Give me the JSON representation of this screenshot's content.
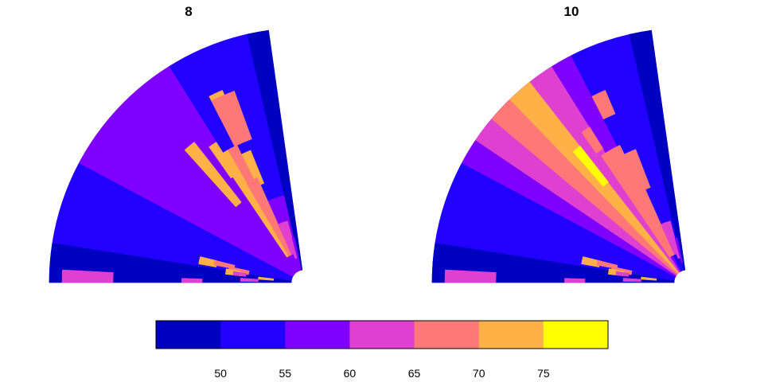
{
  "chart_data": {
    "type": "heatmap",
    "projection": "polar-sector",
    "palette": {
      "bins": [
        [
          45,
          50
        ],
        [
          50,
          55
        ],
        [
          55,
          60
        ],
        [
          60,
          65
        ],
        [
          65,
          70
        ],
        [
          70,
          75
        ],
        [
          75,
          80
        ]
      ],
      "colors": [
        "#0000C0",
        "#2200FF",
        "#8000FF",
        "#E040D0",
        "#FF7878",
        "#FFB046",
        "#FFFF00"
      ]
    },
    "colorbar": {
      "range": [
        45,
        80
      ],
      "ticks": [
        "50",
        "55",
        "60",
        "65",
        "70",
        "75"
      ],
      "tick_values": [
        50,
        55,
        60,
        65,
        70,
        75
      ],
      "placement": "bottom"
    },
    "panels": [
      {
        "title": "8",
        "angle_range_deg": [
          0,
          82
        ],
        "radius_range": [
          0,
          1
        ],
        "cells": [
          {
            "a": [
              0,
              82
            ],
            "r": [
              0.05,
              1
            ],
            "v": 52
          },
          {
            "a": [
              77,
              82
            ],
            "r": [
              0.05,
              1
            ],
            "v": 47
          },
          {
            "a": [
              58,
              77
            ],
            "r": [
              0.35,
              1
            ],
            "v": 52
          },
          {
            "a": [
              0,
              9
            ],
            "r": [
              0.05,
              1
            ],
            "v": 47
          },
          {
            "a": [
              0,
              3
            ],
            "r": [
              0.75,
              0.95
            ],
            "v": 64
          },
          {
            "a": [
              9,
              28
            ],
            "r": [
              0.05,
              1
            ],
            "v": 52
          },
          {
            "a": [
              28,
              58
            ],
            "r": [
              0.05,
              1
            ],
            "v": 57
          },
          {
            "a": [
              58,
              77
            ],
            "r": [
              0.05,
              0.35
            ],
            "v": 57
          },
          {
            "a": [
              63,
              67
            ],
            "r": [
              0.72,
              0.82
            ],
            "v": 74
          },
          {
            "a": [
              63,
              68
            ],
            "r": [
              0.42,
              0.56
            ],
            "v": 74
          },
          {
            "a": [
              55,
              58
            ],
            "r": [
              0.5,
              0.65
            ],
            "v": 74
          },
          {
            "a": [
              48,
              52
            ],
            "r": [
              0.4,
              0.7
            ],
            "v": 74
          },
          {
            "a": [
              63,
              70
            ],
            "r": [
              0.6,
              0.8
            ],
            "v": 68
          },
          {
            "a": [
              58,
              64
            ],
            "r": [
              0.3,
              0.6
            ],
            "v": 68
          },
          {
            "a": [
              56,
              60
            ],
            "r": [
              0.12,
              0.6
            ],
            "v": 74
          },
          {
            "a": [
              60,
              66
            ],
            "r": [
              0.12,
              0.45
            ],
            "v": 68
          },
          {
            "a": [
              66,
              70
            ],
            "r": [
              0.12,
              0.25
            ],
            "v": 64
          },
          {
            "a": [
              70,
              75
            ],
            "r": [
              0.1,
              0.25
            ],
            "v": 64
          },
          {
            "a": [
              75,
              78
            ],
            "r": [
              0.08,
              0.18
            ],
            "v": 57
          },
          {
            "a": [
              10,
              14
            ],
            "r": [
              0.35,
              0.42
            ],
            "v": 74
          },
          {
            "a": [
              11,
              14
            ],
            "r": [
              0.28,
              0.36
            ],
            "v": 68
          },
          {
            "a": [
              8,
              12
            ],
            "r": [
              0.22,
              0.3
            ],
            "v": 68
          },
          {
            "a": [
              6,
              10
            ],
            "r": [
              0.25,
              0.31
            ],
            "v": 74
          },
          {
            "a": [
              6,
              9
            ],
            "r": [
              0.23,
              0.28
            ],
            "v": 64
          },
          {
            "a": [
              4,
              7
            ],
            "r": [
              0.12,
              0.18
            ],
            "v": 74
          },
          {
            "a": [
              1,
              4
            ],
            "r": [
              0.18,
              0.25
            ],
            "v": 64
          },
          {
            "a": [
              0,
              2
            ],
            "r": [
              0.4,
              0.48
            ],
            "v": 64
          }
        ]
      },
      {
        "title": "10",
        "angle_range_deg": [
          0,
          82
        ],
        "radius_range": [
          0,
          1
        ],
        "cells": [
          {
            "a": [
              0,
              82
            ],
            "r": [
              0.05,
              1
            ],
            "v": 52
          },
          {
            "a": [
              77,
              82
            ],
            "r": [
              0.05,
              1
            ],
            "v": 47
          },
          {
            "a": [
              0,
              9
            ],
            "r": [
              0.05,
              1
            ],
            "v": 47
          },
          {
            "a": [
              0,
              3
            ],
            "r": [
              0.75,
              0.95
            ],
            "v": 64
          },
          {
            "a": [
              9,
              28
            ],
            "r": [
              0.05,
              1
            ],
            "v": 52
          },
          {
            "a": [
              28,
              34
            ],
            "r": [
              0.05,
              1
            ],
            "v": 57
          },
          {
            "a": [
              34,
              40
            ],
            "r": [
              0.05,
              1
            ],
            "v": 62
          },
          {
            "a": [
              40,
              46
            ],
            "r": [
              0.05,
              1
            ],
            "v": 68
          },
          {
            "a": [
              46,
              52
            ],
            "r": [
              0.05,
              1
            ],
            "v": 74
          },
          {
            "a": [
              52,
              58
            ],
            "r": [
              0.05,
              1
            ],
            "v": 62
          },
          {
            "a": [
              58,
              63
            ],
            "r": [
              0.05,
              1
            ],
            "v": 57
          },
          {
            "a": [
              63,
              70
            ],
            "r": [
              0.05,
              1
            ],
            "v": 52
          },
          {
            "a": [
              49,
              52
            ],
            "r": [
              0.5,
              0.68
            ],
            "v": 78
          },
          {
            "a": [
              55,
              58
            ],
            "r": [
              0.62,
              0.72
            ],
            "v": 68
          },
          {
            "a": [
              63,
              67
            ],
            "r": [
              0.72,
              0.82
            ],
            "v": 68
          },
          {
            "a": [
              63,
              69
            ],
            "r": [
              0.4,
              0.56
            ],
            "v": 68
          },
          {
            "a": [
              58,
              64
            ],
            "r": [
              0.3,
              0.6
            ],
            "v": 68
          },
          {
            "a": [
              56,
              60
            ],
            "r": [
              0.12,
              0.6
            ],
            "v": 68
          },
          {
            "a": [
              60,
              66
            ],
            "r": [
              0.12,
              0.45
            ],
            "v": 68
          },
          {
            "a": [
              66,
              70
            ],
            "r": [
              0.12,
              0.25
            ],
            "v": 64
          },
          {
            "a": [
              70,
              75
            ],
            "r": [
              0.1,
              0.25
            ],
            "v": 64
          },
          {
            "a": [
              75,
              78
            ],
            "r": [
              0.08,
              0.18
            ],
            "v": 57
          },
          {
            "a": [
              10,
              14
            ],
            "r": [
              0.35,
              0.42
            ],
            "v": 74
          },
          {
            "a": [
              11,
              14
            ],
            "r": [
              0.28,
              0.36
            ],
            "v": 68
          },
          {
            "a": [
              8,
              12
            ],
            "r": [
              0.22,
              0.3
            ],
            "v": 68
          },
          {
            "a": [
              6,
              10
            ],
            "r": [
              0.25,
              0.31
            ],
            "v": 74
          },
          {
            "a": [
              6,
              9
            ],
            "r": [
              0.23,
              0.28
            ],
            "v": 64
          },
          {
            "a": [
              4,
              7
            ],
            "r": [
              0.12,
              0.18
            ],
            "v": 74
          },
          {
            "a": [
              1,
              4
            ],
            "r": [
              0.18,
              0.25
            ],
            "v": 64
          },
          {
            "a": [
              0,
              2
            ],
            "r": [
              0.4,
              0.48
            ],
            "v": 64
          }
        ]
      }
    ]
  }
}
